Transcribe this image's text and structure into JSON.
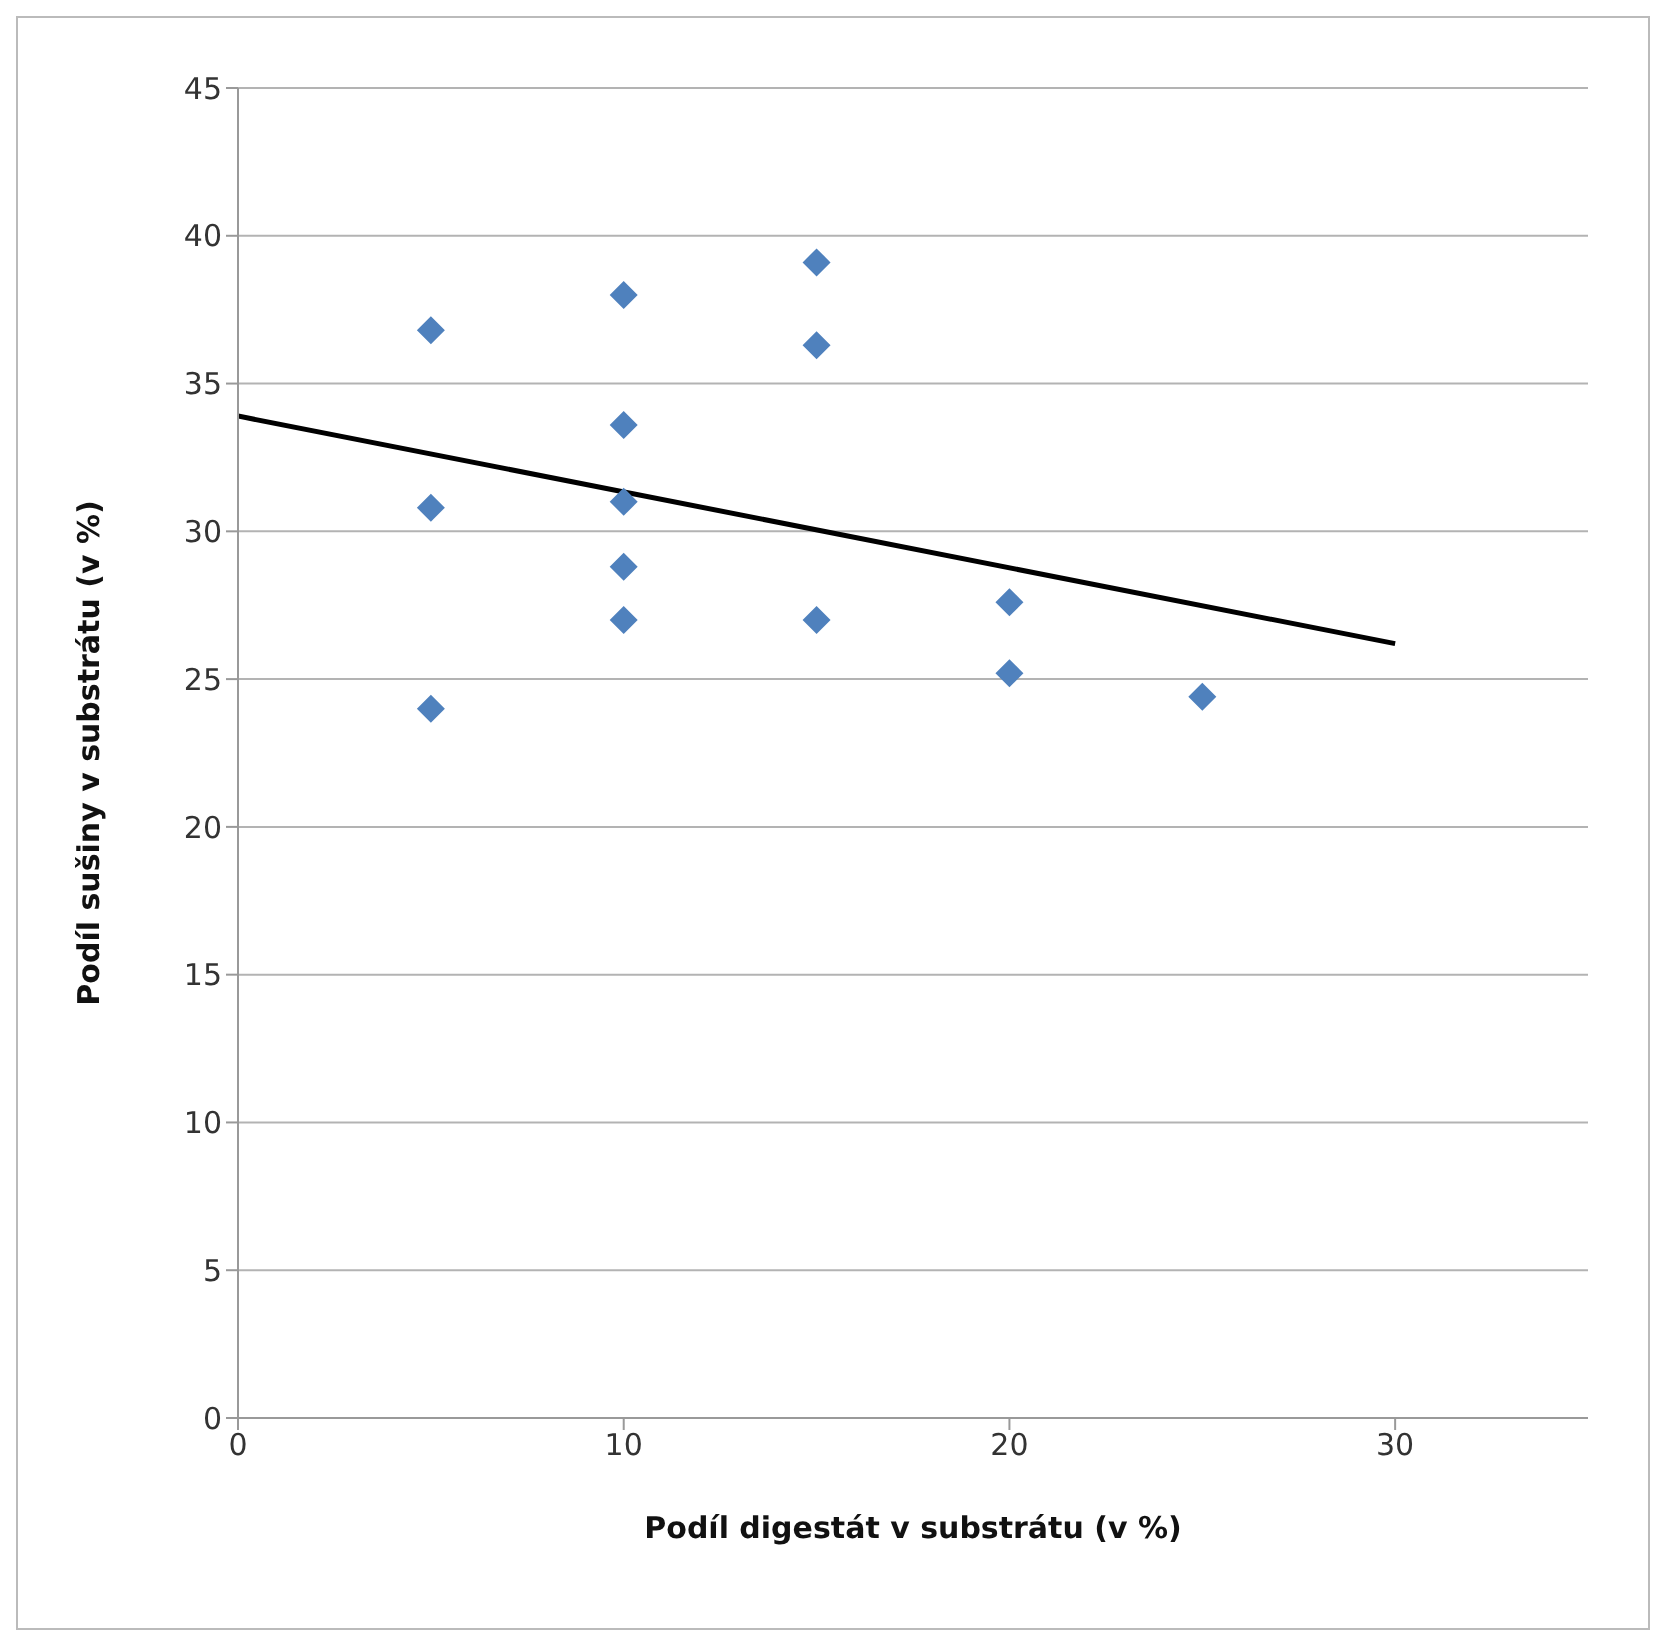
{
  "chart_data": {
    "type": "scatter",
    "xlabel": "Podíl digestát v substrátu (v %)",
    "ylabel": "Podíl sušiny v substrátu (v %)",
    "series": [
      {
        "type": "scatter",
        "color": "#4f81bd",
        "marker": "diamond",
        "x": [
          5,
          5,
          5,
          10,
          10,
          10,
          10,
          10,
          15,
          15,
          15,
          20,
          20,
          25
        ],
        "values": [
          36.8,
          30.8,
          24,
          38,
          33.6,
          31,
          28.8,
          27,
          39.1,
          36.3,
          27,
          27.6,
          25.2,
          24.4
        ]
      },
      {
        "type": "line",
        "color": "#000000",
        "marker": "none",
        "x": [
          0,
          30
        ],
        "values": [
          33.9,
          26.2
        ]
      }
    ],
    "xlim": [
      0,
      35
    ],
    "xticks": [
      0,
      10,
      20,
      30
    ],
    "ylim": [
      0,
      45
    ],
    "yticks": [
      0,
      5,
      10,
      15,
      20,
      25,
      30,
      35,
      40,
      45
    ],
    "grid": "y",
    "legend": false
  }
}
